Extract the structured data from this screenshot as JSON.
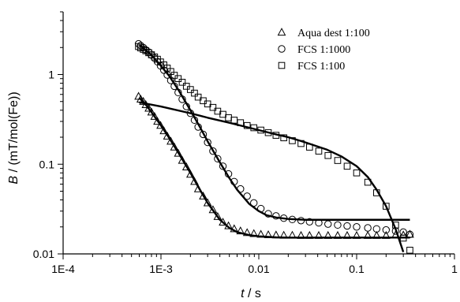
{
  "chart_data": {
    "type": "scatter",
    "x_scale": "log",
    "y_scale": "log",
    "xlim": [
      0.0001,
      1
    ],
    "ylim": [
      0.01,
      5
    ],
    "xticks": [
      0.0001,
      0.001,
      0.01,
      0.1,
      1
    ],
    "xtick_labels": [
      "1E-4",
      "1E-3",
      "0.01",
      "0.1",
      "1"
    ],
    "yticks": [
      0.01,
      0.1,
      1
    ],
    "ytick_labels": [
      "0.01",
      "0.1",
      "1"
    ],
    "xlabel_italic": "t",
    "xlabel_rest": " / s",
    "ylabel_italic": "B",
    "ylabel_rest": " / (mT/mol(Fe))",
    "grid": false,
    "legend_position": "top-right",
    "series": [
      {
        "name": "Aqua dest 1:100",
        "marker": "triangle",
        "x": [
          0.00059,
          0.00062,
          0.00066,
          0.0007,
          0.00075,
          0.0008,
          0.00086,
          0.00092,
          0.00099,
          0.00107,
          0.00116,
          0.00126,
          0.00137,
          0.0015,
          0.00165,
          0.00182,
          0.002,
          0.0022,
          0.0024,
          0.0027,
          0.003,
          0.0034,
          0.0038,
          0.0043,
          0.0049,
          0.0056,
          0.0065,
          0.0076,
          0.0089,
          0.0105,
          0.0125,
          0.015,
          0.018,
          0.022,
          0.027,
          0.033,
          0.041,
          0.051,
          0.064,
          0.08,
          0.1,
          0.13,
          0.16,
          0.2,
          0.25,
          0.3,
          0.35
        ],
        "y": [
          0.57,
          0.53,
          0.5,
          0.46,
          0.42,
          0.38,
          0.34,
          0.3,
          0.27,
          0.235,
          0.205,
          0.18,
          0.155,
          0.132,
          0.11,
          0.093,
          0.077,
          0.064,
          0.053,
          0.044,
          0.037,
          0.031,
          0.026,
          0.0225,
          0.0205,
          0.019,
          0.018,
          0.0172,
          0.0168,
          0.0165,
          0.0163,
          0.0162,
          0.0161,
          0.0161,
          0.016,
          0.016,
          0.016,
          0.016,
          0.016,
          0.016,
          0.016,
          0.016,
          0.016,
          0.016,
          0.0162,
          0.0162,
          0.0165
        ]
      },
      {
        "name": "FCS 1:1000",
        "marker": "circle",
        "x": [
          0.00059,
          0.00062,
          0.00066,
          0.0007,
          0.00075,
          0.0008,
          0.00086,
          0.00092,
          0.00099,
          0.00107,
          0.00116,
          0.00126,
          0.00137,
          0.0015,
          0.00165,
          0.00182,
          0.002,
          0.0022,
          0.0024,
          0.0027,
          0.003,
          0.0034,
          0.0038,
          0.0043,
          0.0049,
          0.0056,
          0.0065,
          0.0076,
          0.0089,
          0.0105,
          0.0125,
          0.015,
          0.018,
          0.022,
          0.027,
          0.033,
          0.041,
          0.051,
          0.064,
          0.08,
          0.1,
          0.13,
          0.16,
          0.2,
          0.25,
          0.3,
          0.35
        ],
        "y": [
          2.2,
          2.1,
          2.0,
          1.88,
          1.78,
          1.65,
          1.52,
          1.39,
          1.25,
          1.12,
          0.99,
          0.86,
          0.74,
          0.63,
          0.53,
          0.44,
          0.37,
          0.31,
          0.26,
          0.215,
          0.175,
          0.14,
          0.115,
          0.095,
          0.078,
          0.064,
          0.053,
          0.044,
          0.037,
          0.032,
          0.028,
          0.0265,
          0.025,
          0.0242,
          0.0235,
          0.0228,
          0.0222,
          0.0215,
          0.021,
          0.0205,
          0.02,
          0.0195,
          0.019,
          0.0185,
          0.018,
          0.0175,
          0.0165
        ]
      },
      {
        "name": "FCS 1:100",
        "marker": "square",
        "x": [
          0.00059,
          0.00062,
          0.00066,
          0.0007,
          0.00075,
          0.0008,
          0.00086,
          0.00092,
          0.00099,
          0.00107,
          0.00116,
          0.00126,
          0.00137,
          0.0015,
          0.00165,
          0.00182,
          0.002,
          0.0022,
          0.0024,
          0.0027,
          0.003,
          0.0034,
          0.0038,
          0.0043,
          0.0049,
          0.0056,
          0.0065,
          0.0076,
          0.0089,
          0.0105,
          0.0125,
          0.015,
          0.018,
          0.022,
          0.027,
          0.033,
          0.041,
          0.051,
          0.064,
          0.08,
          0.1,
          0.13,
          0.16,
          0.2,
          0.25,
          0.3,
          0.35
        ],
        "y": [
          2.05,
          1.98,
          1.91,
          1.84,
          1.75,
          1.66,
          1.57,
          1.48,
          1.38,
          1.28,
          1.18,
          1.08,
          0.98,
          0.9,
          0.82,
          0.74,
          0.68,
          0.62,
          0.56,
          0.51,
          0.47,
          0.43,
          0.39,
          0.36,
          0.33,
          0.31,
          0.29,
          0.27,
          0.255,
          0.24,
          0.225,
          0.21,
          0.197,
          0.183,
          0.17,
          0.155,
          0.14,
          0.125,
          0.11,
          0.095,
          0.08,
          0.063,
          0.048,
          0.034,
          0.021,
          0.015,
          0.011
        ]
      }
    ],
    "fit_curves": [
      {
        "x": [
          0.0006,
          0.0007,
          0.0008,
          0.001,
          0.0012,
          0.0015,
          0.002,
          0.0025,
          0.003,
          0.004,
          0.005,
          0.006,
          0.008,
          0.01,
          0.015,
          0.02,
          0.05,
          0.1,
          0.2,
          0.35
        ],
        "y": [
          0.55,
          0.46,
          0.38,
          0.27,
          0.2,
          0.135,
          0.08,
          0.052,
          0.037,
          0.024,
          0.0195,
          0.0175,
          0.0162,
          0.0157,
          0.0153,
          0.0152,
          0.0152,
          0.0152,
          0.0152,
          0.0152
        ]
      },
      {
        "x": [
          0.0006,
          0.0008,
          0.001,
          0.0012,
          0.0015,
          0.002,
          0.0025,
          0.003,
          0.004,
          0.005,
          0.006,
          0.008,
          0.01,
          0.012,
          0.015,
          0.02,
          0.03,
          0.05,
          0.1,
          0.2,
          0.35
        ],
        "y": [
          2.15,
          1.65,
          1.25,
          0.98,
          0.68,
          0.4,
          0.26,
          0.18,
          0.105,
          0.07,
          0.052,
          0.036,
          0.03,
          0.027,
          0.0255,
          0.0245,
          0.024,
          0.024,
          0.024,
          0.024,
          0.024
        ]
      },
      {
        "x": [
          0.0006,
          0.001,
          0.002,
          0.003,
          0.005,
          0.008,
          0.01,
          0.015,
          0.02,
          0.03,
          0.05,
          0.07,
          0.1,
          0.13,
          0.16,
          0.2,
          0.25,
          0.3
        ],
        "y": [
          0.49,
          0.44,
          0.37,
          0.33,
          0.29,
          0.255,
          0.24,
          0.215,
          0.2,
          0.175,
          0.145,
          0.122,
          0.095,
          0.072,
          0.052,
          0.034,
          0.019,
          0.0105
        ]
      }
    ]
  }
}
